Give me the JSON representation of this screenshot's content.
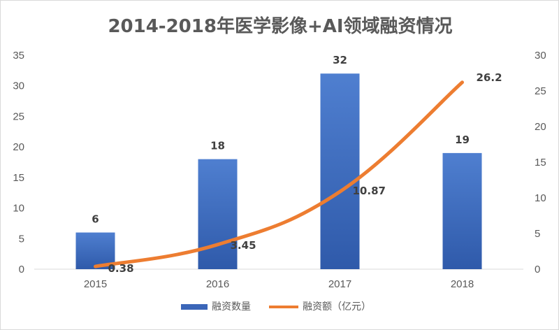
{
  "chart_data": {
    "type": "bar+line",
    "title": "2014-2018年医学影像+AI领域融资情况",
    "categories": [
      "2015",
      "2016",
      "2017",
      "2018"
    ],
    "series": [
      {
        "name": "融资数量",
        "type": "bar",
        "axis": "left",
        "color": "#4472c4",
        "values": [
          6,
          18,
          32,
          19
        ],
        "labels": [
          "6",
          "18",
          "32",
          "19"
        ]
      },
      {
        "name": "融资额（亿元）",
        "type": "line",
        "axis": "right",
        "color": "#ed7d31",
        "values": [
          0.38,
          3.45,
          10.87,
          26.2
        ],
        "labels": [
          "0.38",
          "3.45",
          "10.87",
          "26.2"
        ]
      }
    ],
    "y_left": {
      "min": 0,
      "max": 35,
      "ticks": [
        "0",
        "5",
        "10",
        "15",
        "20",
        "25",
        "30",
        "35"
      ]
    },
    "y_right": {
      "min": 0,
      "max": 30,
      "ticks": [
        "0",
        "5",
        "10",
        "15",
        "20",
        "25",
        "30"
      ]
    },
    "legend_position": "bottom",
    "grid": false
  }
}
